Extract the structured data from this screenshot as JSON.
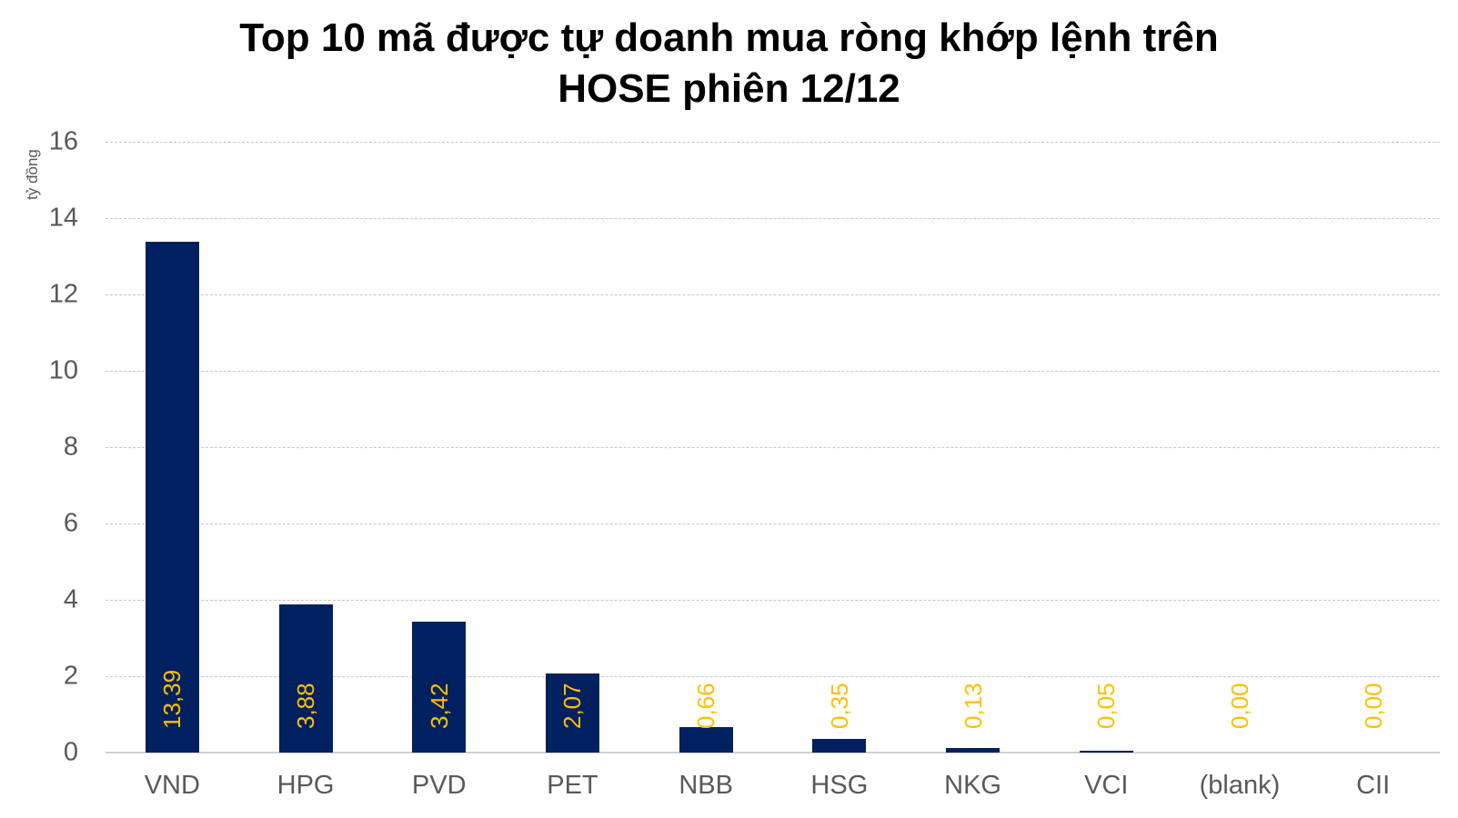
{
  "chart": {
    "title_line1": "Top 10 mã được tự doanh mua ròng khớp lệnh trên",
    "title_line2": "HOSE phiên 12/12",
    "ylabel": "tỷ đồng",
    "yticks": [
      "0",
      "2",
      "4",
      "6",
      "8",
      "10",
      "12",
      "14",
      "16"
    ],
    "bar_color": "#002060",
    "label_color": "#FFC000",
    "categories": [
      "VND",
      "HPG",
      "PVD",
      "PET",
      "NBB",
      "HSG",
      "NKG",
      "VCI",
      "(blank)",
      "CII"
    ],
    "value_labels": [
      "13,39",
      "3,88",
      "3,42",
      "2,07",
      "0,66",
      "0,35",
      "0,13",
      "0,05",
      "0,00",
      "0,00"
    ]
  },
  "chart_data": {
    "type": "bar",
    "title": "Top 10 mã được tự doanh mua ròng khớp lệnh trên HOSE phiên 12/12",
    "xlabel": "",
    "ylabel": "tỷ đồng",
    "categories": [
      "VND",
      "HPG",
      "PVD",
      "PET",
      "NBB",
      "HSG",
      "NKG",
      "VCI",
      "(blank)",
      "CII"
    ],
    "values": [
      13.39,
      3.88,
      3.42,
      2.07,
      0.66,
      0.35,
      0.13,
      0.05,
      0.0,
      0.0
    ],
    "ylim": [
      0,
      16
    ],
    "yticks": [
      0,
      2,
      4,
      6,
      8,
      10,
      12,
      14,
      16
    ],
    "grid": true,
    "legend": null,
    "data_labels": "rotated vertical, inside base of bar, gold color"
  }
}
